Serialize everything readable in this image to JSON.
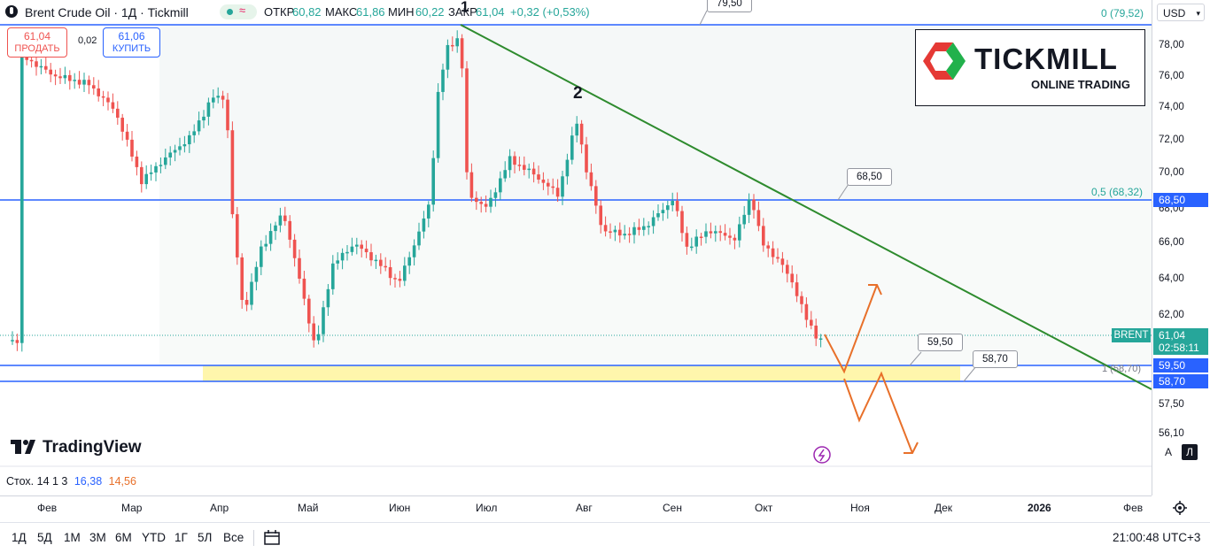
{
  "header": {
    "symbol_title": "Brent Crude Oil · 1Д · Tickmill",
    "open_label": "ОТКР",
    "open_value": "60,82",
    "high_label": "МАКС",
    "high_value": "61,86",
    "low_label": "МИН",
    "low_value": "60,22",
    "close_label": "ЗАКР",
    "close_value": "61,04",
    "change": "+0,32 (+0,53%)"
  },
  "trade": {
    "sell_price": "61,04",
    "sell_label": "ПРОДАТЬ",
    "spread": "0,02",
    "buy_price": "61,06",
    "buy_label": "КУПИТЬ"
  },
  "currency": "USD",
  "logo": {
    "name": "TICKMILL",
    "tagline": "ONLINE TRADING"
  },
  "watermark": "TradingView",
  "price_ticks": [
    "78,00",
    "76,00",
    "74,00",
    "72,00",
    "70,00",
    "68,00",
    "66,00",
    "64,00",
    "62,00",
    "57,50",
    "56,10"
  ],
  "price_labels": {
    "brent_name": "BRENT",
    "brent_price": "61,04",
    "brent_timer": "02:58:11",
    "level_6850": "68,50",
    "level_5950": "59,50",
    "level_5870": "58,70"
  },
  "fib": {
    "top": "0 (79,52)",
    "mid": "0,5 (68,32)",
    "bottom": "1 (58,70)"
  },
  "callouts": {
    "top": "79,50",
    "mid": "68,50",
    "low1": "59,50",
    "low2": "58,70"
  },
  "wave_labels": {
    "w1": "1",
    "w2": "2"
  },
  "time_ticks": [
    "Фев",
    "Мар",
    "Апр",
    "Май",
    "Июн",
    "Июл",
    "Авг",
    "Сен",
    "Окт",
    "Ноя",
    "Дек",
    "2026",
    "Фев"
  ],
  "indicator": {
    "name": "Стох. 14 1 3",
    "k": "16,38",
    "d": "14,56"
  },
  "axis_buttons": {
    "auto": "A",
    "log": "Л"
  },
  "timeframes": [
    "1Д",
    "5Д",
    "1М",
    "3М",
    "6М",
    "YTD",
    "1Г",
    "5Л",
    "Все"
  ],
  "clock": "21:00:48 UTC+3",
  "colors": {
    "up": "#26a69a",
    "down": "#ef5350",
    "trend": "#2e8b2e",
    "level": "#2962ff",
    "arrow": "#e8702a",
    "zone": "#fff59d"
  }
}
